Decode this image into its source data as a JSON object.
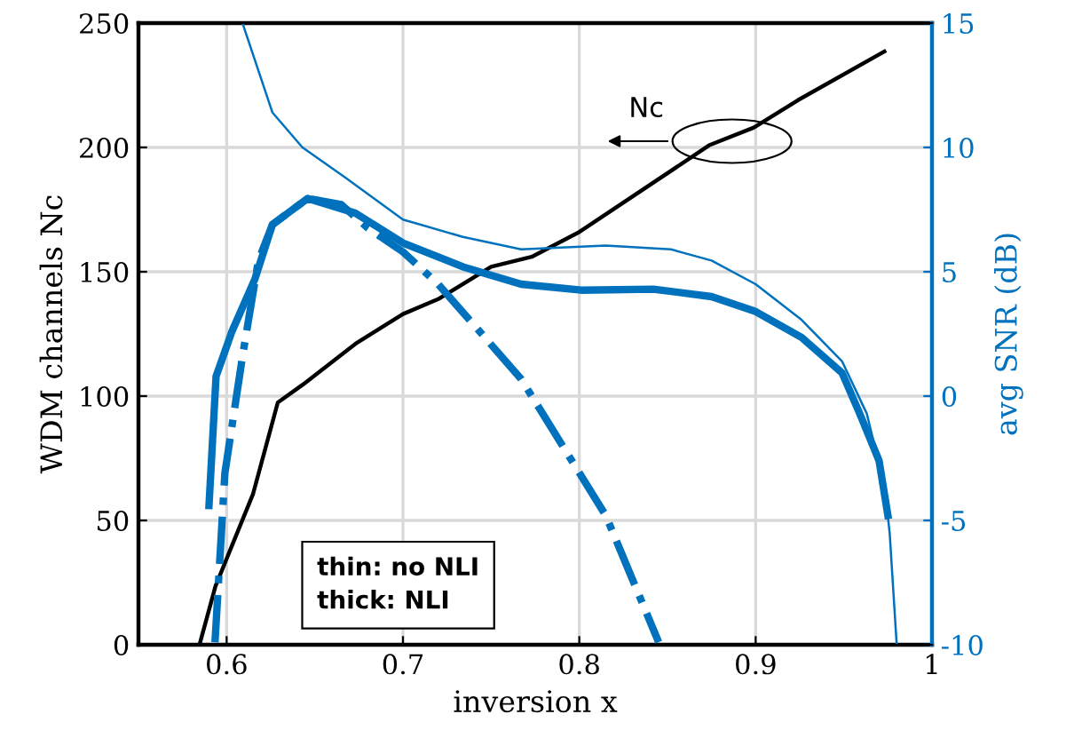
{
  "chart_data": {
    "type": "line",
    "xlabel": "inversion x",
    "ylabel": "WDM channels Nc",
    "y2label": "avg SNR (dB)",
    "xlim": [
      0.55,
      1
    ],
    "xticks": [
      0.6,
      0.7,
      0.8,
      0.9,
      1
    ],
    "ylim": [
      0,
      250
    ],
    "yticks": [
      0,
      50,
      100,
      150,
      200,
      250
    ],
    "y2lim": [
      -10,
      15
    ],
    "y2ticks": [
      -10,
      -5,
      0,
      5,
      10,
      15
    ],
    "grid": true,
    "legend": false,
    "marker": "none",
    "series": [
      {
        "color": "#000000",
        "line_style": "solid",
        "x": [
          0.5846,
          0.5937,
          0.615,
          0.629,
          0.643,
          0.673,
          0.7,
          0.72,
          0.75,
          0.773,
          0.8,
          0.874,
          0.899,
          0.924,
          0.973
        ],
        "values": [
          0,
          23.6,
          60.7,
          97.4,
          104.5,
          121,
          133,
          139,
          152,
          156,
          166,
          201,
          208,
          219,
          238.6
        ]
      },
      {
        "color": "#0072bd",
        "axis": "y2",
        "line_style": "solid",
        "x": [
          0.609,
          0.626,
          0.643,
          0.667,
          0.7,
          0.734,
          0.767,
          0.815,
          0.852,
          0.875,
          0.9,
          0.926,
          0.949,
          0.963,
          0.973,
          0.976,
          0.98
        ],
        "values": [
          15,
          11.4,
          10.0,
          8.8,
          7.1,
          6.4,
          5.9,
          6.05,
          5.9,
          5.45,
          4.5,
          3.07,
          1.4,
          -0.7,
          -3.6,
          -5.5,
          -10
        ]
      },
      {
        "color": "#0072bd",
        "axis": "y2",
        "line_style": "solid",
        "x": [
          0.59,
          0.594,
          0.603,
          0.616,
          0.626,
          0.646,
          0.673,
          0.7,
          0.734,
          0.767,
          0.801,
          0.842,
          0.875,
          0.9,
          0.926,
          0.949,
          0.959,
          0.97,
          0.975
        ],
        "values": [
          -4.4,
          0.79,
          2.6,
          4.7,
          6.9,
          7.95,
          7.36,
          6.16,
          5.2,
          4.5,
          4.26,
          4.3,
          4.0,
          3.4,
          2.36,
          0.93,
          -0.7,
          -2.6,
          -4.8
        ]
      },
      {
        "color": "#0072bd",
        "axis": "y2",
        "line_style": "dashdot",
        "x": [
          0.5934,
          0.599,
          0.609,
          0.618,
          0.626,
          0.646,
          0.665,
          0.68,
          0.7,
          0.72,
          0.767,
          0.815,
          0.845
        ],
        "values": [
          -9.9,
          -3.1,
          1.6,
          5.45,
          6.9,
          7.95,
          7.7,
          6.76,
          5.8,
          4.5,
          0.69,
          -4.8,
          -9.9
        ]
      }
    ],
    "annotations": [
      "Nc",
      "thin: no NLI\nthick: NLI"
    ]
  }
}
